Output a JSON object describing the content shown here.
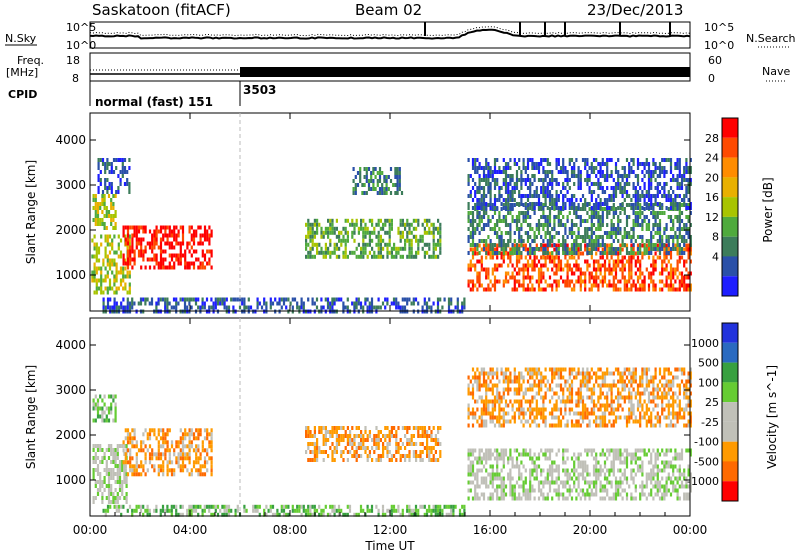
{
  "header": {
    "title": "Saskatoon (fitACF)",
    "beam": "Beam 02",
    "date": "23/Dec/2013"
  },
  "top_panels": {
    "nsky_label": "N.Sky",
    "nsky_ticks": [
      "10^5",
      "10^0"
    ],
    "nsearch_label": "N.Search",
    "nsearch_ticks": [
      "10^5",
      "10^0"
    ],
    "freq_label_line1": "Freq.",
    "freq_label_line2": "[MHz]",
    "freq_ticks": [
      "18",
      "8"
    ],
    "nave_label": "Nave",
    "nave_ticks": [
      "60",
      "0"
    ],
    "cpid_label": "CPID",
    "cpid_segments": [
      {
        "text": "normal (fast) 151",
        "start_hour": 0
      },
      {
        "text": "3503",
        "start_hour": 6
      }
    ]
  },
  "chart_data": [
    {
      "type": "heatmap",
      "name": "power",
      "ylabel": "Slant Range [km]",
      "ylim": [
        200,
        4600
      ],
      "yticks": [
        1000,
        2000,
        3000,
        4000
      ],
      "xlim": [
        0,
        24
      ],
      "colorbar": {
        "label": "Power [dB]",
        "ticks": [
          "28",
          "24",
          "20",
          "16",
          "12",
          "8",
          "4"
        ],
        "colors": [
          "#ff0000",
          "#ff4a00",
          "#ff8c00",
          "#e8b000",
          "#a8c400",
          "#4faa3c",
          "#3c7c5a",
          "#2a50a8",
          "#1e1eff"
        ]
      },
      "regions": [
        {
          "t0": 0.05,
          "t1": 1.6,
          "r0": 600,
          "r1": 1900,
          "level": 4
        },
        {
          "t0": 1.3,
          "t1": 4.9,
          "r0": 1150,
          "r1": 2100,
          "level": 0
        },
        {
          "t0": 0.1,
          "t1": 1.0,
          "r0": 2000,
          "r1": 2800,
          "level": 4
        },
        {
          "t0": 0.3,
          "t1": 1.6,
          "r0": 2800,
          "r1": 3600,
          "level": 7
        },
        {
          "t0": 8.6,
          "t1": 14.0,
          "r0": 1400,
          "r1": 2250,
          "level": 5
        },
        {
          "t0": 15.1,
          "t1": 24.0,
          "r0": 700,
          "r1": 1700,
          "level": 1
        },
        {
          "t0": 15.1,
          "t1": 24.0,
          "r0": 1500,
          "r1": 2600,
          "level": 6
        },
        {
          "t0": 15.1,
          "t1": 24.0,
          "r0": 2500,
          "r1": 3600,
          "level": 7
        },
        {
          "t0": 0.5,
          "t1": 15.0,
          "r0": 200,
          "r1": 500,
          "level": 7
        },
        {
          "t0": 10.5,
          "t1": 12.5,
          "r0": 2800,
          "r1": 3400,
          "level": 6
        }
      ]
    },
    {
      "type": "heatmap",
      "name": "velocity",
      "ylabel": "Slant Range [km]",
      "ylim": [
        200,
        4600
      ],
      "yticks": [
        1000,
        2000,
        3000,
        4000
      ],
      "xlim": [
        0,
        24
      ],
      "xticks": [
        "00:00",
        "04:00",
        "08:00",
        "12:00",
        "16:00",
        "20:00",
        "00:00"
      ],
      "xlabel": "Time UT",
      "colorbar": {
        "label": "Velocity [m s^-1]",
        "ticks": [
          "1000",
          "500",
          "100",
          "25",
          "-25",
          "-100",
          "-500",
          "-1000"
        ],
        "colors": [
          "#2233dd",
          "#2a6ac0",
          "#38a040",
          "#66cc33",
          "#c0c0b8",
          "#c0c0b8",
          "#ff9a00",
          "#ff6a00",
          "#ff0000"
        ]
      },
      "regions": [
        {
          "t0": 0.1,
          "t1": 1.5,
          "r0": 500,
          "r1": 1800,
          "level": 4
        },
        {
          "t0": 1.3,
          "t1": 4.9,
          "r0": 1150,
          "r1": 2150,
          "level": 6
        },
        {
          "t0": 0.1,
          "t1": 1.0,
          "r0": 2300,
          "r1": 2900,
          "level": 3
        },
        {
          "t0": 8.6,
          "t1": 14.0,
          "r0": 1400,
          "r1": 2200,
          "level": 6
        },
        {
          "t0": 15.1,
          "t1": 24.0,
          "r0": 600,
          "r1": 1700,
          "level": 4
        },
        {
          "t0": 15.1,
          "t1": 24.0,
          "r0": 2200,
          "r1": 3500,
          "level": 6
        },
        {
          "t0": 0.5,
          "t1": 15.0,
          "r0": 200,
          "r1": 450,
          "level": 3
        }
      ]
    }
  ]
}
